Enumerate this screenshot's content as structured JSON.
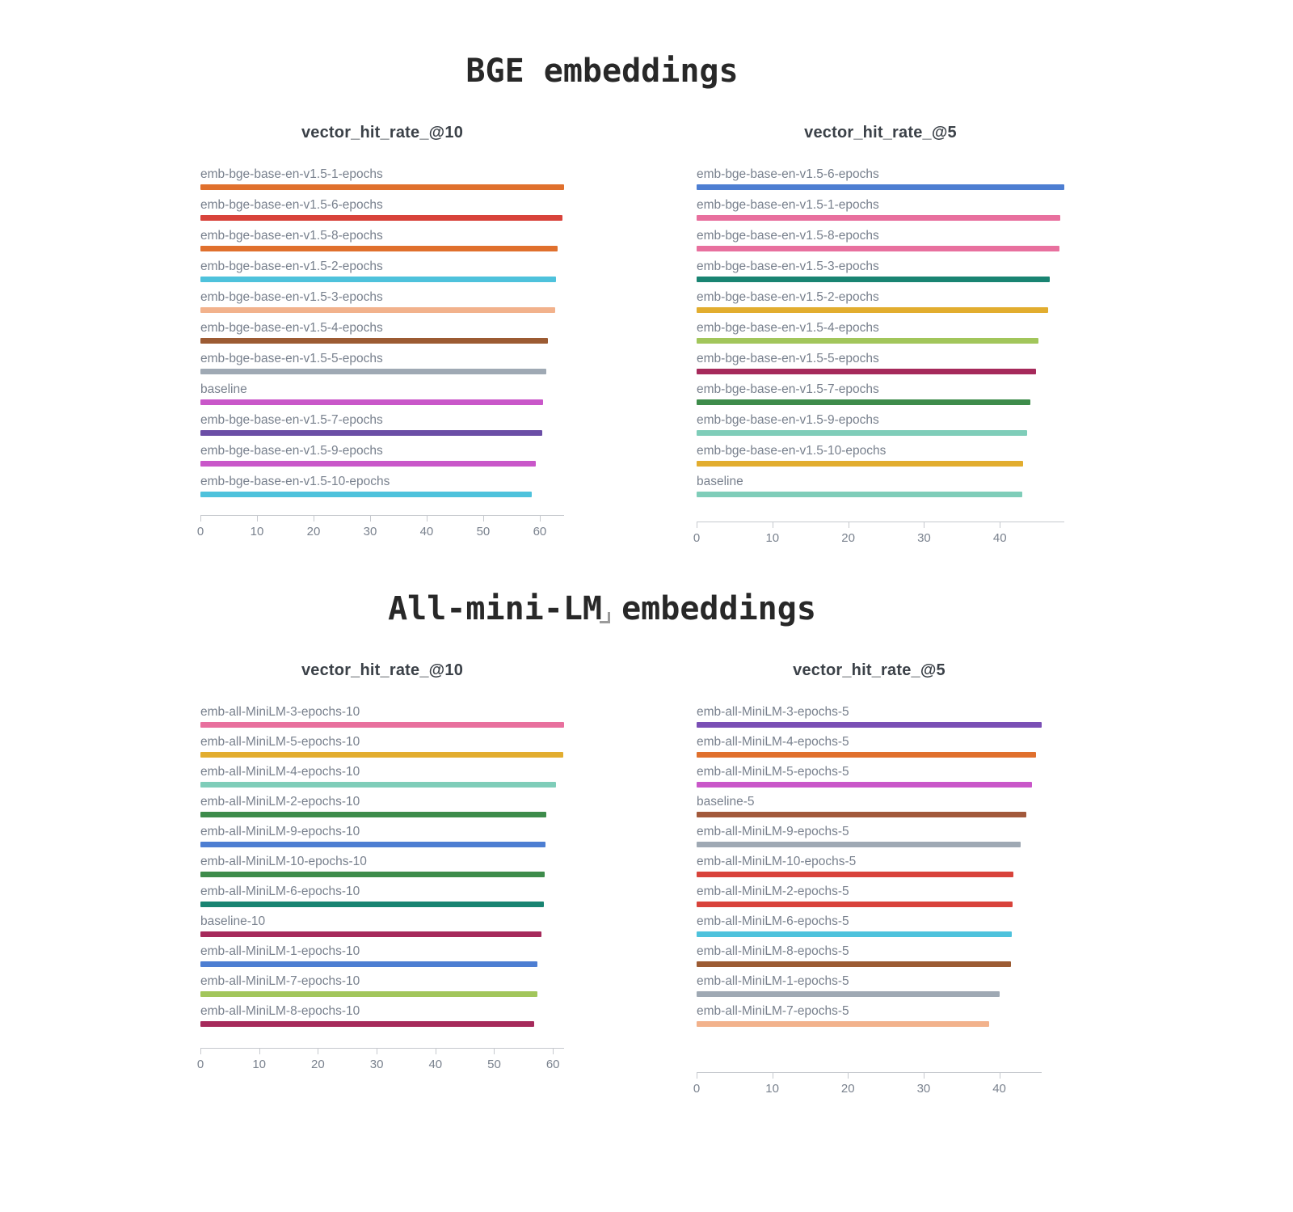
{
  "sections": [
    {
      "title": "BGE embeddings"
    },
    {
      "title": "All-mini-LM embeddings"
    }
  ],
  "icons": {
    "corner": "resize-corner-handle"
  },
  "palette": {
    "orange": "#e0702d",
    "red": "#d8433b",
    "cyan": "#4ec2dc",
    "salmon": "#f2b28c",
    "brown": "#9c5b33",
    "slate_gray": "#9fa9b4",
    "orchid": "#c957c9",
    "dark_purple": "#6b4ea6",
    "blue": "#4d7ed2",
    "pink": "#e8709e",
    "teal": "#198472",
    "gold": "#e2ad2f",
    "light_green": "#a2c65b",
    "maroon": "#a62a5b",
    "green": "#3e8c4b",
    "light_teal": "#7fcdb9",
    "rust": "#a2593b",
    "bright_purple": "#7a4fb5"
  },
  "chart_data": [
    {
      "type": "bar",
      "orientation": "horizontal",
      "group": "BGE embeddings",
      "title": "vector_hit_rate_@10",
      "categories": [
        "emb-bge-base-en-v1.5-1-epochs",
        "emb-bge-base-en-v1.5-6-epochs",
        "emb-bge-base-en-v1.5-8-epochs",
        "emb-bge-base-en-v1.5-2-epochs",
        "emb-bge-base-en-v1.5-3-epochs",
        "emb-bge-base-en-v1.5-4-epochs",
        "emb-bge-base-en-v1.5-5-epochs",
        "baseline",
        "emb-bge-base-en-v1.5-7-epochs",
        "emb-bge-base-en-v1.5-9-epochs",
        "emb-bge-base-en-v1.5-10-epochs"
      ],
      "values": [
        64.3,
        64.0,
        63.1,
        62.9,
        62.7,
        61.5,
        61.2,
        60.6,
        60.4,
        59.3,
        58.6
      ],
      "colors": [
        "#e0702d",
        "#d8433b",
        "#e0702d",
        "#4ec2dc",
        "#f2b28c",
        "#9c5b33",
        "#9fa9b4",
        "#c957c9",
        "#6b4ea6",
        "#c957c9",
        "#4ec2dc"
      ],
      "ticks": [
        0,
        10,
        20,
        30,
        40,
        50,
        60
      ],
      "xlim": [
        0,
        64.3
      ],
      "xlabel": "",
      "ylabel": "",
      "grid": false,
      "legend": "none",
      "sorted": "descending"
    },
    {
      "type": "bar",
      "orientation": "horizontal",
      "group": "BGE embeddings",
      "title": "vector_hit_rate_@5",
      "categories": [
        "emb-bge-base-en-v1.5-6-epochs",
        "emb-bge-base-en-v1.5-1-epochs",
        "emb-bge-base-en-v1.5-8-epochs",
        "emb-bge-base-en-v1.5-3-epochs",
        "emb-bge-base-en-v1.5-2-epochs",
        "emb-bge-base-en-v1.5-4-epochs",
        "emb-bge-base-en-v1.5-5-epochs",
        "emb-bge-base-en-v1.5-7-epochs",
        "emb-bge-base-en-v1.5-9-epochs",
        "emb-bge-base-en-v1.5-10-epochs",
        "baseline"
      ],
      "values": [
        48.5,
        48.0,
        47.9,
        46.6,
        46.4,
        45.1,
        44.8,
        44.0,
        43.6,
        43.1,
        43.0
      ],
      "colors": [
        "#4d7ed2",
        "#e8709e",
        "#e8709e",
        "#198472",
        "#e2ad2f",
        "#a2c65b",
        "#a62a5b",
        "#3e8c4b",
        "#7fcdb9",
        "#e2ad2f",
        "#7fcdb9"
      ],
      "ticks": [
        0,
        10,
        20,
        30,
        40
      ],
      "xlim": [
        0,
        48.5
      ],
      "xlabel": "",
      "ylabel": "",
      "grid": false,
      "legend": "none",
      "sorted": "descending"
    },
    {
      "type": "bar",
      "orientation": "horizontal",
      "group": "All-mini-LM embeddings",
      "title": "vector_hit_rate_@10",
      "categories": [
        "emb-all-MiniLM-3-epochs-10",
        "emb-all-MiniLM-5-epochs-10",
        "emb-all-MiniLM-4-epochs-10",
        "emb-all-MiniLM-2-epochs-10",
        "emb-all-MiniLM-9-epochs-10",
        "emb-all-MiniLM-10-epochs-10",
        "emb-all-MiniLM-6-epochs-10",
        "baseline-10",
        "emb-all-MiniLM-1-epochs-10",
        "emb-all-MiniLM-7-epochs-10",
        "emb-all-MiniLM-8-epochs-10"
      ],
      "values": [
        61.9,
        61.8,
        60.5,
        58.9,
        58.7,
        58.6,
        58.5,
        58.0,
        57.4,
        57.3,
        56.8
      ],
      "colors": [
        "#e8709e",
        "#e2ad2f",
        "#7fcdb9",
        "#3e8c4b",
        "#4d7ed2",
        "#3e8c4b",
        "#198472",
        "#a62a5b",
        "#4d7ed2",
        "#a2c65b",
        "#a62a5b"
      ],
      "ticks": [
        0,
        10,
        20,
        30,
        40,
        50,
        60
      ],
      "xlim": [
        0,
        61.9
      ],
      "xlabel": "",
      "ylabel": "",
      "grid": false,
      "legend": "none",
      "sorted": "descending"
    },
    {
      "type": "bar",
      "orientation": "horizontal",
      "group": "All-mini-LM embeddings",
      "title": "vector_hit_rate_@5",
      "categories": [
        "emb-all-MiniLM-3-epochs-5",
        "emb-all-MiniLM-4-epochs-5",
        "emb-all-MiniLM-5-epochs-5",
        "baseline-5",
        "emb-all-MiniLM-9-epochs-5",
        "emb-all-MiniLM-10-epochs-5",
        "emb-all-MiniLM-2-epochs-5",
        "emb-all-MiniLM-6-epochs-5",
        "emb-all-MiniLM-8-epochs-5",
        "emb-all-MiniLM-1-epochs-5",
        "emb-all-MiniLM-7-epochs-5"
      ],
      "values": [
        45.6,
        44.9,
        44.3,
        43.6,
        42.8,
        41.9,
        41.8,
        41.6,
        41.5,
        40.0,
        38.7
      ],
      "colors": [
        "#7a4fb5",
        "#e0702d",
        "#c957c9",
        "#a2593b",
        "#9fa9b4",
        "#d8433b",
        "#d8433b",
        "#4ec2dc",
        "#9c5b33",
        "#9fa9b4",
        "#f2b28c"
      ],
      "ticks": [
        0,
        10,
        20,
        30,
        40
      ],
      "xlim": [
        0,
        45.6
      ],
      "xlabel": "",
      "ylabel": "",
      "grid": false,
      "legend": "none",
      "sorted": "descending"
    }
  ]
}
